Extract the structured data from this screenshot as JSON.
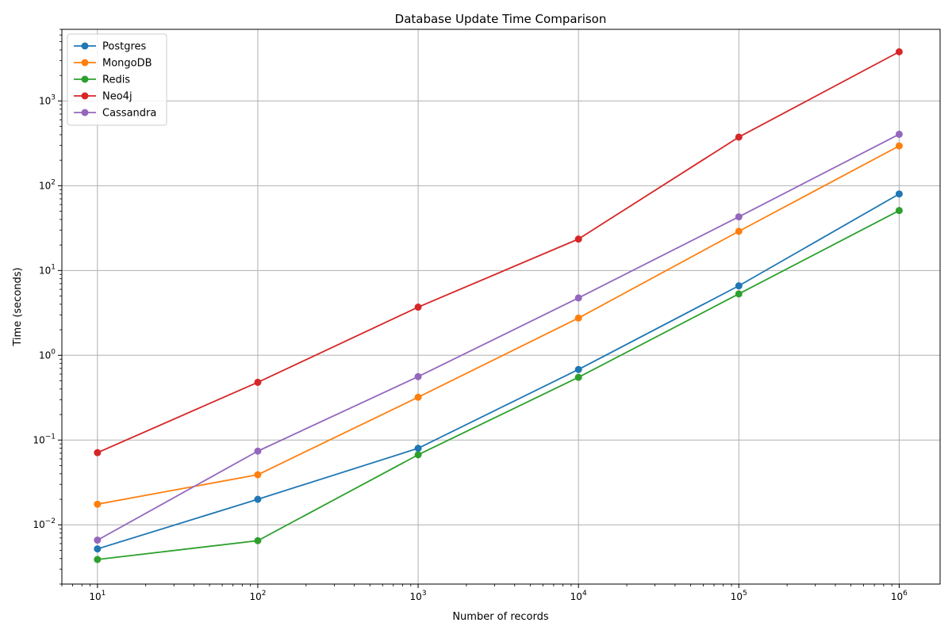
{
  "chart_data": {
    "type": "line",
    "title": "Database Update Time Comparison",
    "xlabel": "Number of records",
    "ylabel": "Time (seconds)",
    "x_scale": "log",
    "y_scale": "log",
    "x": [
      10,
      100,
      1000,
      10000,
      100000,
      1000000
    ],
    "xlim": [
      6,
      1800000
    ],
    "ylim": [
      0.002,
      7000
    ],
    "x_ticks": [
      {
        "base": "10",
        "exp": "1",
        "value": 10
      },
      {
        "base": "10",
        "exp": "2",
        "value": 100
      },
      {
        "base": "10",
        "exp": "3",
        "value": 1000
      },
      {
        "base": "10",
        "exp": "4",
        "value": 10000
      },
      {
        "base": "10",
        "exp": "5",
        "value": 100000
      },
      {
        "base": "10",
        "exp": "6",
        "value": 1000000
      }
    ],
    "y_ticks": [
      {
        "base": "10",
        "exp": "−2",
        "value": 0.01
      },
      {
        "base": "10",
        "exp": "−1",
        "value": 0.1
      },
      {
        "base": "10",
        "exp": "0",
        "value": 1
      },
      {
        "base": "10",
        "exp": "1",
        "value": 10
      },
      {
        "base": "10",
        "exp": "2",
        "value": 100
      },
      {
        "base": "10",
        "exp": "3",
        "value": 1000
      }
    ],
    "grid": true,
    "legend_position": "top-left",
    "series": [
      {
        "name": "Postgres",
        "color": "#1f77b4",
        "values": [
          0.0052,
          0.02,
          0.08,
          0.68,
          6.6,
          80
        ]
      },
      {
        "name": "MongoDB",
        "color": "#ff7f0e",
        "values": [
          0.0175,
          0.039,
          0.32,
          2.75,
          29,
          295
        ]
      },
      {
        "name": "Redis",
        "color": "#2ca02c",
        "values": [
          0.0039,
          0.0065,
          0.067,
          0.55,
          5.3,
          51
        ]
      },
      {
        "name": "Neo4j",
        "color": "#d62728",
        "values": [
          0.071,
          0.48,
          3.7,
          23.5,
          375,
          3800
        ]
      },
      {
        "name": "Cassandra",
        "color": "#9467bd",
        "values": [
          0.0066,
          0.074,
          0.56,
          4.75,
          43,
          405
        ]
      }
    ]
  }
}
